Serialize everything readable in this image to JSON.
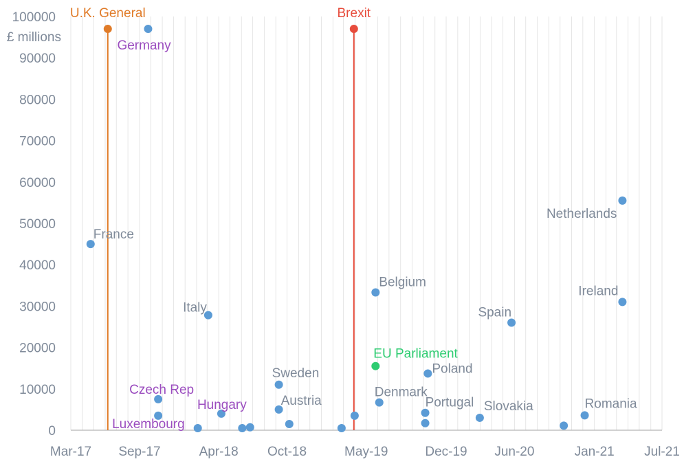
{
  "chart_data": {
    "type": "scatter",
    "ylabel": "£ millions",
    "ylim": [
      0,
      100000
    ],
    "yticks": [
      0,
      10000,
      20000,
      30000,
      40000,
      50000,
      60000,
      70000,
      80000,
      90000,
      100000
    ],
    "xlim": [
      "2017-03-01",
      "2021-07-01"
    ],
    "xticks": [
      {
        "date": "2017-03-01",
        "label": "Mar-17"
      },
      {
        "date": "2017-09-01",
        "label": "Sep-17"
      },
      {
        "date": "2018-04-01",
        "label": "Apr-18"
      },
      {
        "date": "2018-10-01",
        "label": "Oct-18"
      },
      {
        "date": "2019-05-01",
        "label": "May-19"
      },
      {
        "date": "2019-12-01",
        "label": "Dec-19"
      },
      {
        "date": "2020-06-01",
        "label": "Jun-20"
      },
      {
        "date": "2021-01-01",
        "label": "Jan-21"
      },
      {
        "date": "2021-07-01",
        "label": "Jul-21"
      }
    ],
    "grid": "vertical-monthly",
    "colors": {
      "point": "#5b9bd5",
      "uk_general": "#e07b28",
      "brexit": "#e74c3c",
      "eu_parliament": "#2ecc71",
      "label_gray": "#7f8a99",
      "label_purple": "#9b4dbf"
    },
    "events": [
      {
        "name": "U.K. General",
        "date": "2017-06-08",
        "y": 97000,
        "color": "#e07b28"
      },
      {
        "name": "Brexit",
        "date": "2019-03-29",
        "y": 97000,
        "color": "#e74c3c"
      }
    ],
    "points": [
      {
        "label": "France",
        "date": "2017-04-23",
        "y": 45000,
        "color": "#5b9bd5",
        "label_color": "#7f8a99"
      },
      {
        "label": "Germany",
        "date": "2017-09-24",
        "y": 97000,
        "color": "#5b9bd5",
        "label_color": "#9b4dbf"
      },
      {
        "label": "Czech Rep",
        "date": "2017-10-21",
        "y": 7500,
        "color": "#5b9bd5",
        "label_color": "#9b4dbf"
      },
      {
        "label": "",
        "date": "2017-10-21",
        "y": 3500,
        "color": "#5b9bd5",
        "label_color": "#7f8a99"
      },
      {
        "label": "Luxembourg",
        "date": "2018-02-04",
        "y": 500,
        "color": "#5b9bd5",
        "label_color": "#9b4dbf"
      },
      {
        "label": "Italy",
        "date": "2018-03-04",
        "y": 27800,
        "color": "#5b9bd5",
        "label_color": "#7f8a99"
      },
      {
        "label": "Hungary",
        "date": "2018-04-08",
        "y": 4000,
        "color": "#5b9bd5",
        "label_color": "#9b4dbf"
      },
      {
        "label": "",
        "date": "2018-06-03",
        "y": 500,
        "color": "#5b9bd5",
        "label_color": "#7f8a99"
      },
      {
        "label": "",
        "date": "2018-06-24",
        "y": 700,
        "color": "#5b9bd5",
        "label_color": "#7f8a99"
      },
      {
        "label": "Sweden",
        "date": "2018-09-09",
        "y": 11000,
        "color": "#5b9bd5",
        "label_color": "#7f8a99"
      },
      {
        "label": "Austria",
        "date": "2018-09-09",
        "y": 5000,
        "color": "#5b9bd5",
        "label_color": "#7f8a99"
      },
      {
        "label": "",
        "date": "2018-10-07",
        "y": 1500,
        "color": "#5b9bd5",
        "label_color": "#7f8a99"
      },
      {
        "label": "",
        "date": "2019-02-24",
        "y": 500,
        "color": "#5b9bd5",
        "label_color": "#7f8a99"
      },
      {
        "label": "",
        "date": "2019-03-31",
        "y": 3500,
        "color": "#5b9bd5",
        "label_color": "#7f8a99"
      },
      {
        "label": "Belgium",
        "date": "2019-05-26",
        "y": 33300,
        "color": "#5b9bd5",
        "label_color": "#7f8a99"
      },
      {
        "label": "EU Parliament",
        "date": "2019-05-26",
        "y": 15500,
        "color": "#2ecc71",
        "label_color": "#2ecc71"
      },
      {
        "label": "Denmark",
        "date": "2019-06-05",
        "y": 6700,
        "color": "#5b9bd5",
        "label_color": "#7f8a99"
      },
      {
        "label": "Portugal",
        "date": "2019-10-06",
        "y": 4200,
        "color": "#5b9bd5",
        "label_color": "#7f8a99"
      },
      {
        "label": "",
        "date": "2019-10-06",
        "y": 1700,
        "color": "#5b9bd5",
        "label_color": "#7f8a99"
      },
      {
        "label": "Poland",
        "date": "2019-10-13",
        "y": 13700,
        "color": "#5b9bd5",
        "label_color": "#7f8a99"
      },
      {
        "label": "Slovakia",
        "date": "2020-02-29",
        "y": 3000,
        "color": "#5b9bd5",
        "label_color": "#7f8a99"
      },
      {
        "label": "Spain",
        "date": "2020-05-24",
        "y": 26000,
        "color": "#5b9bd5",
        "label_color": "#7f8a99"
      },
      {
        "label": "",
        "date": "2020-10-11",
        "y": 1100,
        "color": "#5b9bd5",
        "label_color": "#7f8a99"
      },
      {
        "label": "Romania",
        "date": "2020-12-06",
        "y": 3600,
        "color": "#5b9bd5",
        "label_color": "#7f8a99"
      },
      {
        "label": "Netherlands",
        "date": "2021-03-17",
        "y": 55500,
        "color": "#5b9bd5",
        "label_color": "#7f8a99"
      },
      {
        "label": "Ireland",
        "date": "2021-03-17",
        "y": 31000,
        "color": "#5b9bd5",
        "label_color": "#7f8a99"
      }
    ]
  }
}
